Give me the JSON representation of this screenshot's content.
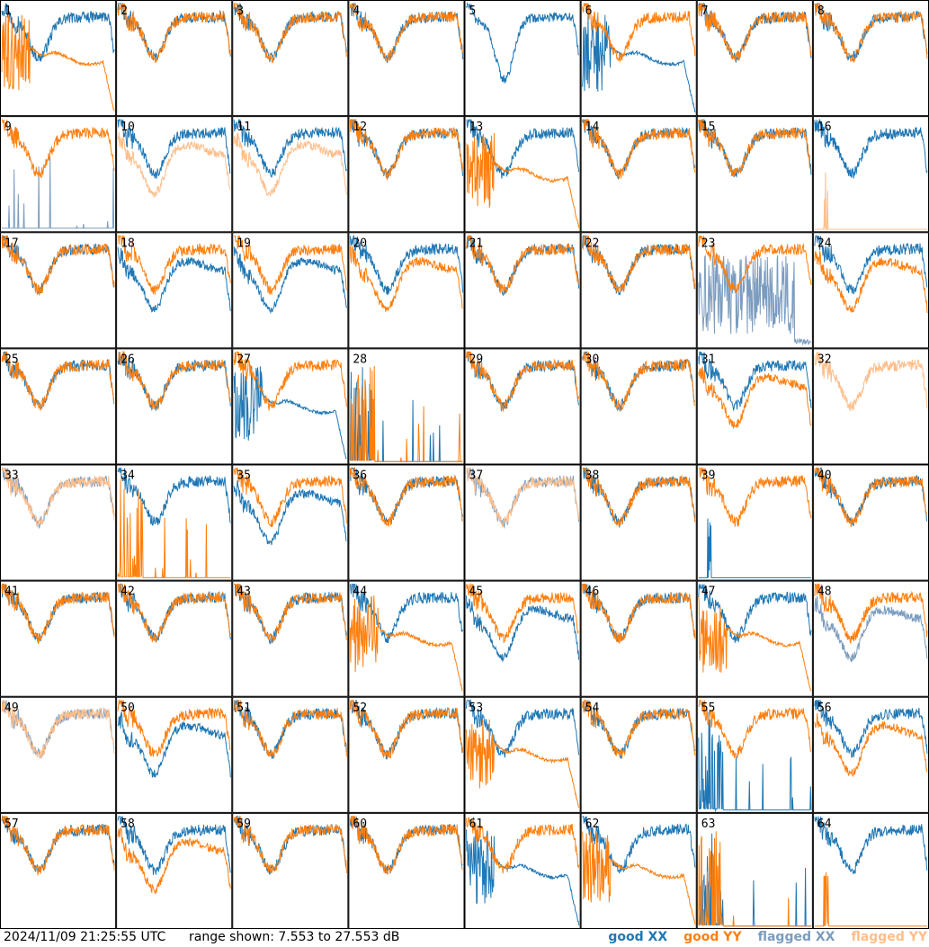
{
  "chart_data": {
    "type": "line",
    "panel_count": 64,
    "panel_labels": [
      "1",
      "2",
      "3",
      "4",
      "5",
      "6",
      "7",
      "8",
      "9",
      "10",
      "11",
      "12",
      "13",
      "14",
      "15",
      "16",
      "17",
      "18",
      "19",
      "20",
      "21",
      "22",
      "23",
      "24",
      "25",
      "26",
      "27",
      "28",
      "29",
      "30",
      "31",
      "32",
      "33",
      "34",
      "35",
      "36",
      "37",
      "38",
      "39",
      "40",
      "41",
      "42",
      "43",
      "44",
      "45",
      "46",
      "47",
      "48",
      "49",
      "50",
      "51",
      "52",
      "53",
      "54",
      "55",
      "56",
      "57",
      "58",
      "59",
      "60",
      "61",
      "62",
      "63",
      "64"
    ],
    "ylim": [
      7.553,
      27.553
    ],
    "y_unit": "dB",
    "series": [
      {
        "name": "good XX",
        "color": "#1f77b4"
      },
      {
        "name": "good YY",
        "color": "#ff7f0e"
      },
      {
        "name": "flagged XX",
        "color": "#7b9cbf"
      },
      {
        "name": "flagged YY",
        "color": "#ffbe8a"
      }
    ],
    "panel_styles": {
      "1": {
        "xx": "normal",
        "yy": "decay"
      },
      "5": {
        "xx": "dip",
        "yy": "none"
      },
      "6": {
        "xx": "decay",
        "yy": "normal"
      },
      "9": {
        "xx": "spiky_flagged",
        "yy": "normal"
      },
      "10": {
        "xx": "normal",
        "yy": "flagged_low"
      },
      "11": {
        "xx": "normal",
        "yy": "flagged_low"
      },
      "13": {
        "xx": "normal",
        "yy": "decay"
      },
      "16": {
        "xx": "normal",
        "yy": "spike_flagged"
      },
      "18": {
        "xx": "low",
        "yy": "normal"
      },
      "19": {
        "xx": "low",
        "yy": "normal"
      },
      "20": {
        "xx": "normal",
        "yy": "low"
      },
      "23": {
        "xx": "noisy_flagged",
        "yy": "normal"
      },
      "24": {
        "xx": "normal",
        "yy": "low"
      },
      "27": {
        "xx": "decay",
        "yy": "normal"
      },
      "28": {
        "xx": "spiky",
        "yy": "spiky"
      },
      "31": {
        "xx": "normal",
        "yy": "low"
      },
      "32": {
        "xx": "none",
        "yy": "flagged_normal"
      },
      "33": {
        "xx": "flagged_normal",
        "yy": "flagged_normal"
      },
      "34": {
        "xx": "normal",
        "yy": "spiky"
      },
      "35": {
        "xx": "low",
        "yy": "normal"
      },
      "37": {
        "xx": "flagged_normal",
        "yy": "flagged_normal"
      },
      "39": {
        "xx": "spike",
        "yy": "normal"
      },
      "44": {
        "xx": "normal",
        "yy": "decay"
      },
      "45": {
        "xx": "low",
        "yy": "normal"
      },
      "47": {
        "xx": "normal",
        "yy": "decay"
      },
      "48": {
        "xx": "flagged_low",
        "yy": "normal"
      },
      "49": {
        "xx": "flagged_normal",
        "yy": "flagged_normal"
      },
      "50": {
        "xx": "low",
        "yy": "normal"
      },
      "53": {
        "xx": "normal",
        "yy": "decay"
      },
      "55": {
        "xx": "spiky",
        "yy": "normal"
      },
      "56": {
        "xx": "normal",
        "yy": "low"
      },
      "58": {
        "xx": "normal",
        "yy": "low"
      },
      "61": {
        "xx": "decay",
        "yy": "normal"
      },
      "62": {
        "xx": "normal",
        "yy": "decay"
      },
      "63": {
        "xx": "spiky",
        "yy": "spiky"
      },
      "64": {
        "xx": "normal",
        "yy": "spike"
      }
    }
  },
  "footer": {
    "timestamp": "2024/11/09 21:25:55 UTC",
    "range_text": "range shown: 7.553 to 27.553 dB",
    "legend": [
      {
        "label": "good XX",
        "color": "#1f77b4"
      },
      {
        "label": "good YY",
        "color": "#ff7f0e"
      },
      {
        "label": "flagged XX",
        "color": "#7b9cbf"
      },
      {
        "label": "flagged YY",
        "color": "#ffbe8a"
      }
    ]
  }
}
